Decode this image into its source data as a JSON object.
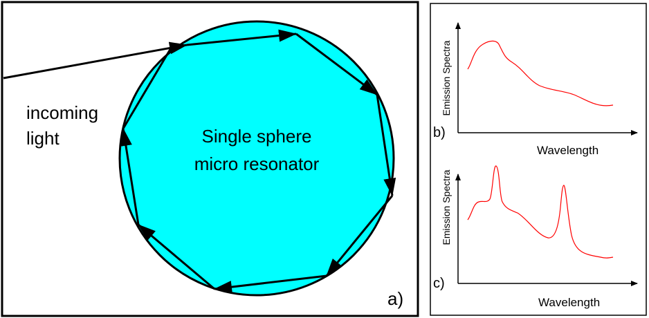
{
  "panel_a": {
    "incoming_label_line1": "incoming",
    "incoming_label_line2": "light",
    "center_label_line1": "Single sphere",
    "center_label_line2": "micro resonator",
    "panel_letter": "a)",
    "sphere_color": "#00FFFF"
  },
  "panel_b": {
    "ylabel": "Emission Spectra",
    "xlabel": "Wavelength",
    "panel_letter": "b)",
    "curve_color": "#FF0000"
  },
  "panel_c": {
    "ylabel": "Emission Spectra",
    "xlabel": "Wavelength",
    "panel_letter": "c)",
    "curve_color": "#FF0000"
  }
}
